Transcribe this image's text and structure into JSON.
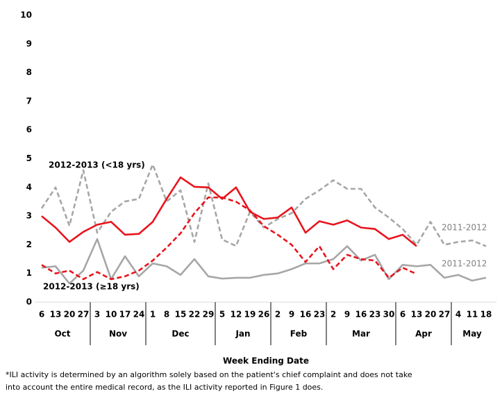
{
  "chart_data": {
    "type": "line",
    "categories": [
      "6",
      "13",
      "20",
      "27",
      "3",
      "10",
      "17",
      "24",
      "1",
      "8",
      "15",
      "22",
      "29",
      "5",
      "12",
      "19",
      "26",
      "2",
      "9",
      "16",
      "23",
      "2",
      "9",
      "16",
      "23",
      "30",
      "6",
      "13",
      "20",
      "27",
      "4",
      "11",
      "18"
    ],
    "month_labels": [
      "Oct",
      "Nov",
      "Dec",
      "Jan",
      "Feb",
      "Mar",
      "Apr",
      "May"
    ],
    "xlabel": "Week Ending Date",
    "ylim": [
      0,
      10
    ],
    "yticks": [
      0,
      1,
      2,
      3,
      4,
      5,
      6,
      7,
      8,
      9,
      10
    ],
    "series": [
      {
        "name": "2011-2012",
        "color": "#a6a6a6",
        "dash": true,
        "values": [
          3.27,
          4.0,
          2.66,
          4.6,
          2.42,
          3.15,
          3.51,
          3.6,
          4.8,
          3.51,
          3.9,
          2.1,
          4.14,
          2.18,
          1.96,
          3.15,
          2.6,
          2.9,
          3.1,
          3.6,
          3.9,
          4.25,
          3.95,
          3.95,
          3.3,
          2.95,
          2.55,
          2.0,
          2.8,
          2.0,
          2.1,
          2.15,
          1.95
        ]
      },
      {
        "name": "2011-2012",
        "color": "#a6a6a6",
        "dash": false,
        "values": [
          1.2,
          1.25,
          0.65,
          1.1,
          2.2,
          0.8,
          1.6,
          0.9,
          1.35,
          1.25,
          0.95,
          1.5,
          0.9,
          0.82,
          0.85,
          0.85,
          0.95,
          1.0,
          1.15,
          1.35,
          1.35,
          1.5,
          1.95,
          1.45,
          1.65,
          0.8,
          1.3,
          1.25,
          1.3,
          0.85,
          0.95,
          0.75,
          0.85
        ]
      },
      {
        "name": "2012-2013 (<18 yrs)",
        "color": "#e8141c",
        "dash": false,
        "values": [
          3.0,
          2.6,
          2.1,
          2.45,
          2.7,
          2.8,
          2.35,
          2.38,
          2.8,
          3.6,
          4.35,
          4.02,
          4.0,
          3.6,
          4.0,
          3.15,
          2.9,
          2.95,
          3.3,
          2.42,
          2.82,
          2.7,
          2.85,
          2.6,
          2.55,
          2.2,
          2.35,
          1.95,
          null,
          null,
          null,
          null,
          null
        ]
      },
      {
        "name": "2012-2013 (≥18 yrs)",
        "color": "#e8141c",
        "dash": true,
        "values": [
          1.3,
          1.0,
          1.1,
          0.8,
          1.05,
          0.8,
          0.9,
          1.1,
          1.45,
          1.9,
          2.4,
          3.1,
          3.65,
          3.65,
          3.5,
          3.2,
          2.65,
          2.35,
          2.0,
          1.4,
          1.95,
          1.15,
          1.65,
          1.5,
          1.45,
          0.85,
          1.2,
          0.98,
          null,
          null,
          null,
          null,
          null
        ]
      }
    ],
    "footnote": [
      "*ILI activity is determined by an algorithm solely based on the patient's chief complaint and does not take",
      "into account the entire medical record, as the ILI activity reported in Figure 1 does."
    ]
  }
}
